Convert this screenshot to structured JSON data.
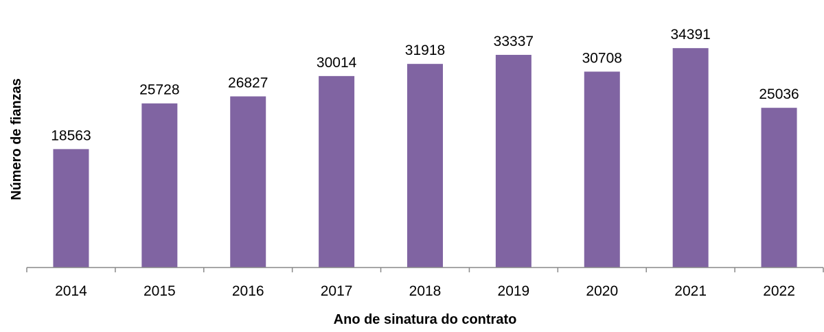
{
  "chart_data": {
    "type": "bar",
    "title": "",
    "xlabel": "Ano de sinatura do contrato",
    "ylabel": "Número de  fianzas",
    "categories": [
      "2014",
      "2015",
      "2016",
      "2017",
      "2018",
      "2019",
      "2020",
      "2021",
      "2022"
    ],
    "values": [
      18563,
      25728,
      26827,
      30014,
      31918,
      33337,
      30708,
      34391,
      25036
    ],
    "ylim": [
      0,
      40000
    ],
    "grid": false,
    "legend": "none",
    "bar_color": "#8064A2"
  }
}
